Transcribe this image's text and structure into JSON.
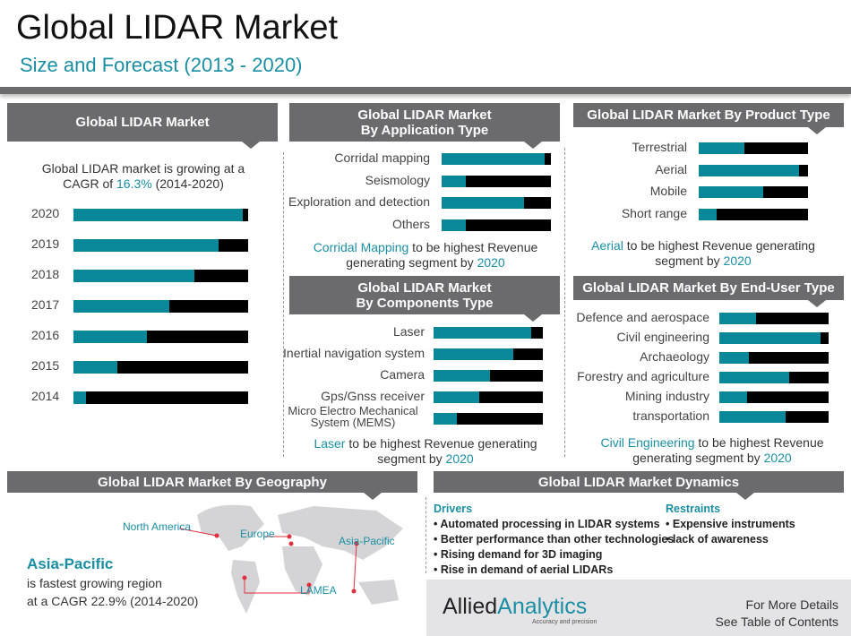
{
  "title": "Global LIDAR Market",
  "subtitle": "Size and Forecast (2013 - 2020)",
  "colors": {
    "accent": "#0a8799",
    "remainder": "#000000",
    "header": "#6b6b6d"
  },
  "market": {
    "header": "Global LIDAR Market",
    "note_pre": "Global LIDAR market is growing at a CAGR of ",
    "note_hl": "16.3%",
    "note_post": " (2014-2020)"
  },
  "application": {
    "header": "Global LIDAR Market\nBy  Application Type",
    "note_hl": "Corridal Mapping",
    "note_mid": " to be highest Revenue generating segment by ",
    "note_year": "2020"
  },
  "product": {
    "header": "Global LIDAR Market By  Product Type",
    "note_hl": "Aerial",
    "note_mid": " to be highest Revenue generating segment by ",
    "note_year": "2020"
  },
  "components": {
    "header": "Global LIDAR Market\nBy Components Type",
    "note_hl": "Laser",
    "note_mid": " to be highest Revenue generating segment by ",
    "note_year": "2020"
  },
  "enduser": {
    "header": "Global LIDAR Market By  End-User Type",
    "note_hl": "Civil Engineering",
    "note_mid": " to be highest Revenue generating segment by ",
    "note_year": "2020"
  },
  "chart_data": [
    {
      "type": "bar",
      "orientation": "horizontal",
      "stacked_share": true,
      "categories": [
        "2020",
        "2019",
        "2018",
        "2017",
        "2016",
        "2015",
        "2014"
      ],
      "values": [
        0.97,
        0.83,
        0.69,
        0.55,
        0.42,
        0.25,
        0.07
      ],
      "xlim": [
        0,
        1
      ]
    },
    {
      "type": "bar",
      "orientation": "horizontal",
      "categories": [
        "Corridal mapping",
        "Seismology",
        "Exploration and detection",
        "Others"
      ],
      "values": [
        0.94,
        0.22,
        0.75,
        0.22
      ],
      "xlim": [
        0,
        1
      ]
    },
    {
      "type": "bar",
      "orientation": "horizontal",
      "categories": [
        "Terrestrial",
        "Aerial",
        "Mobile",
        "Short range"
      ],
      "values": [
        0.42,
        0.92,
        0.59,
        0.16
      ],
      "xlim": [
        0,
        1
      ]
    },
    {
      "type": "bar",
      "orientation": "horizontal",
      "categories": [
        "Laser",
        "Inertial navigation system",
        "Camera",
        "Gps/Gnss receiver",
        "Micro Electro Mechanical System (MEMS)"
      ],
      "values": [
        0.89,
        0.73,
        0.52,
        0.42,
        0.21
      ],
      "xlim": [
        0,
        1
      ]
    },
    {
      "type": "bar",
      "orientation": "horizontal",
      "categories": [
        "Defence and aerospace",
        "Civil engineering",
        "Archaeology",
        "Forestry and agriculture",
        "Mining industry",
        "transportation"
      ],
      "values": [
        0.34,
        0.93,
        0.27,
        0.64,
        0.25,
        0.61
      ],
      "xlim": [
        0,
        1
      ]
    }
  ],
  "geography": {
    "header": "Global LIDAR Market By Geography",
    "regions": [
      "North America",
      "Europe",
      "Asia-Pacific",
      "LAMEA"
    ],
    "lead": "Asia-Pacific",
    "text1": "is fastest growing region",
    "text2": "at a CAGR 22.9% (2014-2020)"
  },
  "dynamics": {
    "header": "Global LIDAR Market Dynamics",
    "drivers_title": "Drivers",
    "drivers": [
      "Automated processing in LIDAR  systems",
      "Better performance than other technologies",
      "Rising demand for 3D imaging",
      "Rise in demand of aerial LIDARs"
    ],
    "restraints_title": "Restraints",
    "restraints": [
      "Expensive instruments",
      "lack of awareness"
    ]
  },
  "footer": {
    "logo_a": "Allied",
    "logo_b": "Analytics",
    "tagline": "Accuracy and precision",
    "line1": "For More Details",
    "line2": "See Table of Contents"
  }
}
